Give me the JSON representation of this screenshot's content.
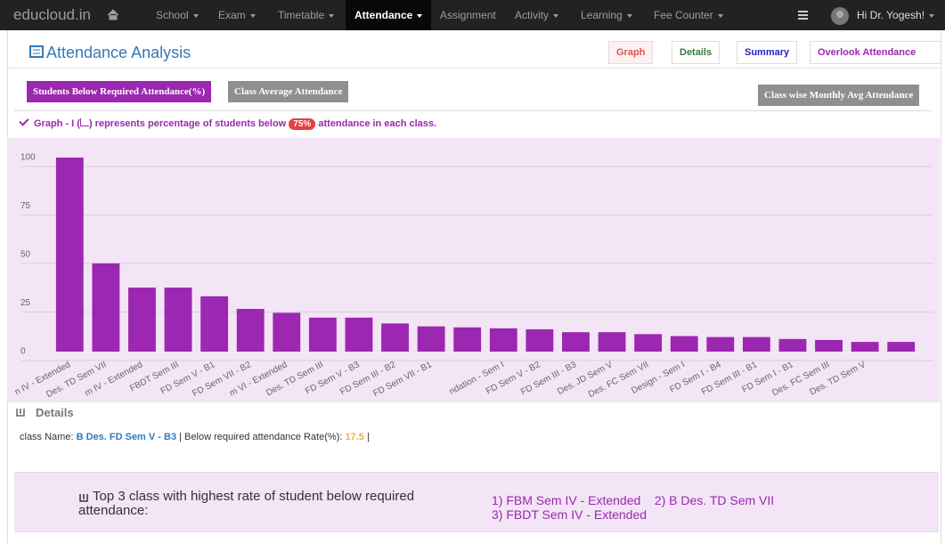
{
  "navbar": {
    "brand": "educloud.in",
    "items": [
      "School",
      "Exam",
      "Timetable",
      "Attendance",
      "Assignment",
      "Activity",
      "Learning",
      "Fee Counter"
    ],
    "user": "Hi Dr. Yogesh!"
  },
  "header": {
    "title": "Attendance Analysis",
    "tabs": [
      "Graph",
      "Details",
      "Summary",
      "Overlook Attendance"
    ]
  },
  "buttons": {
    "left": [
      "Students Below Required Attendance(%)",
      "Class Average Attendance"
    ],
    "right": "Class wise Monthly Avg Attendance"
  },
  "note": {
    "prefix": "Graph - I (",
    "middle": ") represents percentage of students below",
    "badge": "75%",
    "suffix": "attendance in each class."
  },
  "chart": {
    "type": "bar",
    "color": "#9c27b0",
    "grid": true,
    "categories": [
      "n IV - Extended",
      "Des. TD Sem VII",
      "m IV - Extended",
      "FBDT Sem III",
      "FD Sem V - B1",
      "FD Sem VII - B2",
      "m VI - Extended",
      "Des. TD Sem III",
      "FD Sem V - B3",
      "FD Sem III - B2",
      "FD Sem VII - B1",
      null,
      "ndation - Sem I",
      "FD Sem V - B2",
      "FD Sem III - B3",
      "Des. JD Sem V",
      "Des. FC Sem VII",
      "Design - Sem I",
      "FD Sem I - B4",
      "FD Sem III - B1",
      "FD Sem I - B1",
      "Des. FC Sem III",
      "Des. TD Sem V",
      null
    ],
    "values": [
      100,
      45.5,
      33,
      33,
      28.5,
      22,
      20,
      17.5,
      17.5,
      14.5,
      13,
      12.5,
      12,
      11.5,
      10,
      10,
      9,
      8,
      7.5,
      7.5,
      6.5,
      6,
      5,
      5
    ],
    "ylim": [
      0,
      100
    ],
    "yticks": [
      0,
      25,
      50,
      75,
      100
    ]
  },
  "details": {
    "title": "Details",
    "label": "class Name:",
    "class_name": "B Des. FD Sem V - B3",
    "rate_label": "| Below required attendance Rate(%):",
    "rate": 17.5,
    "end": "|"
  },
  "top3": {
    "label": "Top 3 class with highest rate of student below required attendance:",
    "list": "1) FBM Sem IV - Extended    2) B Des. TD Sem VII    3) FBDT Sem IV - Extended"
  }
}
